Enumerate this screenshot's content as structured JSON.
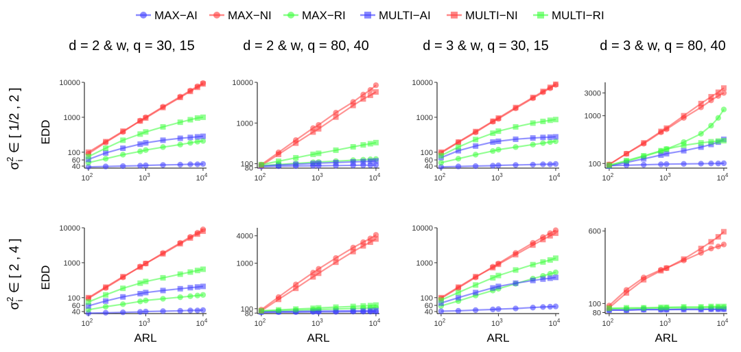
{
  "legend": {
    "items": [
      {
        "label": "MAX−AI",
        "color": "#3b3bff",
        "shape": "circle"
      },
      {
        "label": "MAX−NI",
        "color": "#ff3b3b",
        "shape": "circle"
      },
      {
        "label": "MAX−RI",
        "color": "#3bff3b",
        "shape": "circle"
      },
      {
        "label": "MULTI−AI",
        "color": "#3b3bff",
        "shape": "square"
      },
      {
        "label": "MULTI−NI",
        "color": "#ff3b3b",
        "shape": "square"
      },
      {
        "label": "MULTI−RI",
        "color": "#3bff3b",
        "shape": "square"
      }
    ],
    "placement": "top"
  },
  "columns": [
    "d = 2 & w, q = 30, 15",
    "d = 2 & w, q = 80, 40",
    "d = 3 & w, q = 30, 15",
    "d = 3 & w, q = 80, 40"
  ],
  "rows": [
    {
      "sigma": "σ",
      "sup": "2",
      "sub": "i",
      "range": "∈ [ 1/2 , 2 ]"
    },
    {
      "sigma": "σ",
      "sup": "2",
      "sub": "i",
      "range": "∈ [ 2 , 4 ]"
    }
  ],
  "ylabel": "EDD",
  "xlabel": "ARL",
  "x_ticks": [
    "10",
    "10",
    "10"
  ],
  "x_tick_exps": [
    "2",
    "3",
    "4"
  ],
  "chart_data": {
    "type": "line",
    "x_scale": "log10",
    "y_scale": "log10",
    "grid": false,
    "x": [
      100,
      200,
      400,
      800,
      1000,
      2000,
      4000,
      6000,
      8000,
      10000
    ],
    "series_meta": [
      {
        "name": "MAX−AI",
        "color": "#3b3bff",
        "shape": "circle"
      },
      {
        "name": "MAX−NI",
        "color": "#ff3b3b",
        "shape": "circle"
      },
      {
        "name": "MAX−RI",
        "color": "#3bff3b",
        "shape": "circle"
      },
      {
        "name": "MULTI−AI",
        "color": "#3b3bff",
        "shape": "square"
      },
      {
        "name": "MULTI−NI",
        "color": "#ff3b3b",
        "shape": "square"
      },
      {
        "name": "MULTI−RI",
        "color": "#3bff3b",
        "shape": "square"
      }
    ],
    "panels": [
      {
        "row": 0,
        "col": 0,
        "ylim": [
          35,
          10000
        ],
        "yticks": [
          40,
          60,
          100,
          1000,
          10000
        ],
        "series": [
          [
            38,
            39,
            40,
            41,
            42,
            43,
            44,
            45,
            45,
            46
          ],
          [
            90,
            190,
            380,
            800,
            1000,
            2000,
            3900,
            5800,
            7700,
            9500
          ],
          [
            50,
            65,
            85,
            105,
            115,
            140,
            165,
            185,
            200,
            210
          ],
          [
            62,
            95,
            130,
            170,
            185,
            220,
            250,
            265,
            275,
            285
          ],
          [
            100,
            200,
            400,
            780,
            950,
            1900,
            3700,
            5500,
            7200,
            9000
          ],
          [
            75,
            130,
            220,
            330,
            380,
            530,
            720,
            850,
            950,
            1000
          ]
        ]
      },
      {
        "row": 0,
        "col": 1,
        "ylim": [
          78,
          10000
        ],
        "yticks": [
          80,
          100,
          1000,
          10000
        ],
        "series": [
          [
            85,
            87,
            88,
            89,
            89,
            90,
            91,
            92,
            92,
            93
          ],
          [
            95,
            190,
            380,
            750,
            900,
            1800,
            3300,
            5000,
            6500,
            8500
          ],
          [
            90,
            96,
            102,
            108,
            110,
            116,
            122,
            125,
            128,
            130
          ],
          [
            88,
            93,
            97,
            101,
            103,
            107,
            111,
            113,
            115,
            117
          ],
          [
            90,
            170,
            320,
            600,
            720,
            1400,
            2700,
            3900,
            4800,
            5800
          ],
          [
            95,
            115,
            140,
            170,
            180,
            215,
            260,
            290,
            310,
            330
          ]
        ]
      },
      {
        "row": 0,
        "col": 2,
        "ylim": [
          35,
          10000
        ],
        "yticks": [
          40,
          60,
          100,
          1000,
          10000
        ],
        "series": [
          [
            38,
            39,
            40,
            41,
            42,
            43,
            44,
            45,
            45,
            46
          ],
          [
            95,
            190,
            370,
            750,
            900,
            1800,
            3500,
            5200,
            6800,
            8500
          ],
          [
            50,
            65,
            85,
            108,
            118,
            140,
            165,
            182,
            195,
            205
          ],
          [
            70,
            110,
            150,
            195,
            205,
            235,
            255,
            265,
            270,
            275
          ],
          [
            100,
            195,
            390,
            770,
            950,
            1900,
            3700,
            5500,
            7200,
            8800
          ],
          [
            80,
            140,
            230,
            350,
            400,
            530,
            680,
            760,
            820,
            860
          ]
        ]
      },
      {
        "row": 0,
        "col": 3,
        "ylim": [
          80,
          5000
        ],
        "yticks": [
          100,
          1000,
          3000
        ],
        "series": [
          [
            90,
            92,
            94,
            96,
            97,
            98,
            99,
            100,
            100,
            101
          ],
          [
            95,
            160,
            260,
            450,
            520,
            900,
            1500,
            2100,
            2600,
            3000
          ],
          [
            90,
            110,
            140,
            180,
            200,
            280,
            420,
            620,
            900,
            1350
          ],
          [
            88,
            105,
            125,
            150,
            160,
            185,
            220,
            250,
            280,
            320
          ],
          [
            95,
            160,
            270,
            470,
            550,
            1000,
            1800,
            2500,
            3100,
            3800
          ],
          [
            92,
            115,
            145,
            185,
            200,
            240,
            270,
            285,
            295,
            300
          ]
        ]
      },
      {
        "row": 1,
        "col": 0,
        "ylim": [
          35,
          10000
        ],
        "yticks": [
          40,
          60,
          100,
          1000,
          10000
        ],
        "series": [
          [
            36,
            37,
            38,
            39,
            40,
            41,
            42,
            43,
            43,
            44
          ],
          [
            95,
            190,
            380,
            780,
            950,
            1900,
            3700,
            5500,
            7200,
            9000
          ],
          [
            45,
            55,
            65,
            78,
            83,
            93,
            103,
            110,
            115,
            120
          ],
          [
            58,
            80,
            105,
            130,
            140,
            160,
            180,
            193,
            202,
            210
          ],
          [
            100,
            200,
            400,
            750,
            950,
            1800,
            3500,
            5100,
            6600,
            8000
          ],
          [
            75,
            120,
            185,
            260,
            290,
            370,
            470,
            540,
            600,
            650
          ]
        ]
      },
      {
        "row": 1,
        "col": 1,
        "ylim": [
          78,
          6000
        ],
        "yticks": [
          80,
          100,
          1000,
          4000
        ],
        "series": [
          [
            83,
            84,
            84,
            85,
            85,
            85,
            86,
            86,
            86,
            86
          ],
          [
            95,
            180,
            340,
            620,
            750,
            1300,
            2200,
            2900,
            3500,
            4200
          ],
          [
            88,
            90,
            92,
            95,
            96,
            98,
            101,
            103,
            104,
            106
          ],
          [
            85,
            86,
            87,
            88,
            88,
            89,
            90,
            90,
            91,
            91
          ],
          [
            90,
            160,
            280,
            500,
            600,
            1050,
            1800,
            2400,
            2900,
            3400
          ],
          [
            90,
            94,
            98,
            102,
            104,
            108,
            112,
            115,
            117,
            120
          ]
        ]
      },
      {
        "row": 1,
        "col": 2,
        "ylim": [
          35,
          10000
        ],
        "yticks": [
          40,
          60,
          100,
          1000,
          10000
        ],
        "series": [
          [
            41,
            42,
            44,
            46,
            47,
            49,
            52,
            54,
            55,
            56
          ],
          [
            95,
            190,
            380,
            770,
            950,
            1900,
            3700,
            5400,
            7000,
            8500
          ],
          [
            58,
            80,
            115,
            160,
            180,
            250,
            350,
            420,
            480,
            530
          ],
          [
            70,
            100,
            140,
            190,
            210,
            260,
            310,
            340,
            360,
            380
          ],
          [
            100,
            200,
            400,
            720,
            900,
            1700,
            3200,
            4600,
            5900,
            7000
          ],
          [
            85,
            140,
            230,
            370,
            430,
            620,
            880,
            1050,
            1200,
            1350
          ]
        ]
      },
      {
        "row": 1,
        "col": 3,
        "ylim": [
          78,
          650
        ],
        "yticks": [
          80,
          100,
          600
        ],
        "series": [
          [
            85,
            85,
            86,
            86,
            86,
            87,
            87,
            87,
            87,
            87
          ],
          [
            95,
            140,
            190,
            230,
            240,
            290,
            350,
            390,
            410,
            430
          ],
          [
            88,
            88,
            89,
            89,
            90,
            90,
            90,
            91,
            91,
            91
          ],
          [
            85,
            85,
            86,
            86,
            86,
            86,
            86,
            87,
            87,
            87
          ],
          [
            90,
            130,
            180,
            225,
            240,
            300,
            390,
            460,
            520,
            590
          ],
          [
            89,
            90,
            90,
            91,
            91,
            92,
            92,
            93,
            93,
            93
          ]
        ]
      }
    ]
  }
}
